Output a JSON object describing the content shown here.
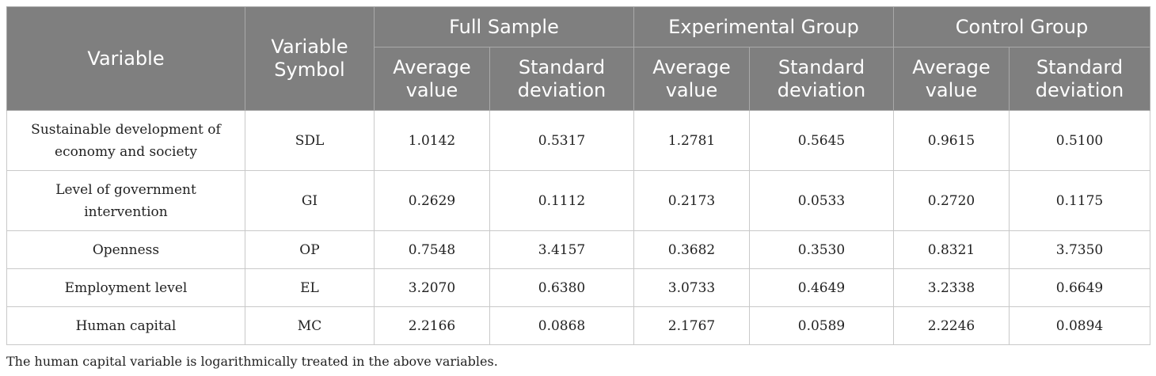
{
  "header": {
    "variable": "Variable",
    "variable_symbol": "Variable Symbol",
    "groups": [
      "Full Sample",
      "Experimental Group",
      "Control Group"
    ],
    "average_value": "Average value",
    "standard_deviation": "Standard deviation"
  },
  "rows": [
    {
      "name": "Sustainable development of economy and society",
      "symbol": "SDL",
      "full_avg": "1.0142",
      "full_sd": "0.5317",
      "exp_avg": "1.2781",
      "exp_sd": "0.5645",
      "ctrl_avg": "0.9615",
      "ctrl_sd": "0.5100"
    },
    {
      "name": "Level of government intervention",
      "symbol": "GI",
      "full_avg": "0.2629",
      "full_sd": "0.1112",
      "exp_avg": "0.2173",
      "exp_sd": "0.0533",
      "ctrl_avg": "0.2720",
      "ctrl_sd": "0.1175"
    },
    {
      "name": "Openness",
      "symbol": "OP",
      "full_avg": "0.7548",
      "full_sd": "3.4157",
      "exp_avg": "0.3682",
      "exp_sd": "0.3530",
      "ctrl_avg": "0.8321",
      "ctrl_sd": "3.7350"
    },
    {
      "name": "Employment level",
      "symbol": "EL",
      "full_avg": "3.2070",
      "full_sd": "0.6380",
      "exp_avg": "3.0733",
      "exp_sd": "0.4649",
      "ctrl_avg": "3.2338",
      "ctrl_sd": "0.6649"
    },
    {
      "name": "Human capital",
      "symbol": "MC",
      "full_avg": "2.2166",
      "full_sd": "0.0868",
      "exp_avg": "2.1767",
      "exp_sd": "0.0589",
      "ctrl_avg": "2.2246",
      "ctrl_sd": "0.0894"
    }
  ],
  "footnote": "The human capital variable is logarithmically treated in the above variables."
}
